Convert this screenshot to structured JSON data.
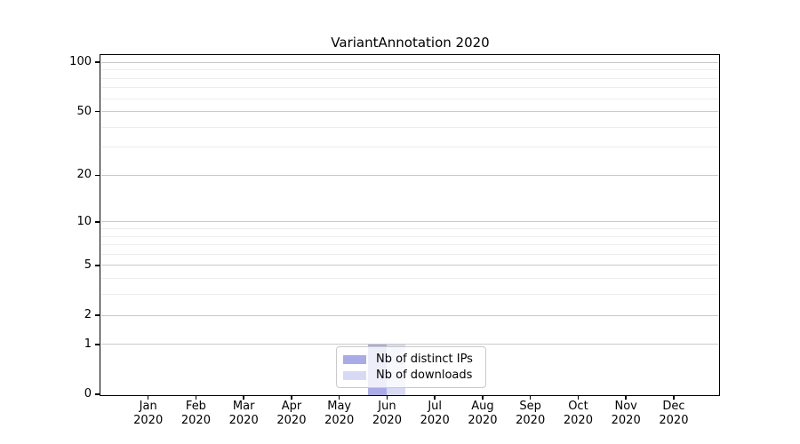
{
  "chart_data": {
    "type": "bar",
    "title": "VariantAnnotation 2020",
    "months": [
      "Jan",
      "Feb",
      "Mar",
      "Apr",
      "May",
      "Jun",
      "Jul",
      "Aug",
      "Sep",
      "Oct",
      "Nov",
      "Dec"
    ],
    "year": "2020",
    "series": [
      {
        "name": "Nb of distinct IPs",
        "color": "#a9abe6",
        "values": [
          0,
          0,
          0,
          0,
          0,
          1,
          0,
          0,
          0,
          0,
          0,
          0
        ]
      },
      {
        "name": "Nb of downloads",
        "color": "#d8daf5",
        "values": [
          0,
          0,
          0,
          0,
          0,
          1,
          0,
          0,
          0,
          0,
          0,
          0
        ]
      }
    ],
    "y_axis": {
      "scale": "log10(1+x)",
      "tick_values": [
        0,
        1,
        2,
        5,
        10,
        20,
        50,
        100
      ],
      "minor_gridline_values": [
        3,
        4,
        6,
        7,
        8,
        9,
        30,
        40,
        60,
        70,
        80,
        90
      ],
      "range_max": 110
    },
    "legend": {
      "position": "lower center",
      "entries": [
        "Nb of distinct IPs",
        "Nb of downloads"
      ]
    },
    "grid": true,
    "colors": {
      "major_grid": "#c9c9c9",
      "minor_grid": "#ededed",
      "axis": "#000000",
      "background": "#ffffff"
    }
  }
}
